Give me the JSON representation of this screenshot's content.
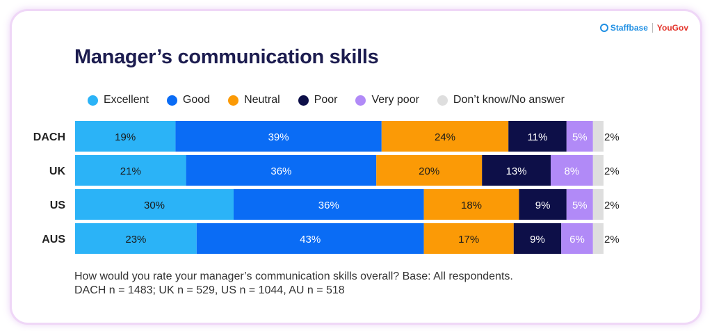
{
  "brand": {
    "staffbase": "Staffbase",
    "yougov": "YouGov"
  },
  "colors": {
    "Excellent": "#2bb3f7",
    "Good": "#0a6cf5",
    "Neutral": "#fb9a06",
    "Poor": "#0d0f48",
    "Very poor": "#b18af7",
    "Don't know/No answer": "#dedede"
  },
  "footnote": {
    "line1": "How would you rate your manager’s communication skills overall? Base: All respondents.",
    "line2": "DACH n = 1483; UK n = 529, US n = 1044, AU n = 518"
  },
  "chart_data": {
    "type": "bar",
    "orientation": "horizontal",
    "stacked": true,
    "title": "Manager’s communication skills",
    "categories": [
      "DACH",
      "UK",
      "US",
      "AUS"
    ],
    "series": [
      {
        "name": "Excellent",
        "values": [
          19,
          21,
          30,
          23
        ]
      },
      {
        "name": "Good",
        "values": [
          39,
          36,
          36,
          43
        ]
      },
      {
        "name": "Neutral",
        "values": [
          24,
          20,
          18,
          17
        ]
      },
      {
        "name": "Poor",
        "values": [
          11,
          13,
          9,
          9
        ]
      },
      {
        "name": "Very poor",
        "values": [
          5,
          8,
          5,
          6
        ]
      },
      {
        "name": "Don’t know/No answer",
        "values": [
          2,
          2,
          2,
          2
        ]
      }
    ],
    "value_suffix": "%",
    "xlim": [
      0,
      100
    ],
    "legend": "top",
    "grid": false
  }
}
